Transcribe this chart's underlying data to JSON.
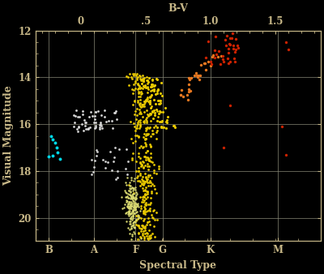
{
  "title": "B-V",
  "xlabel": "Spectral Type",
  "ylabel": "Visual Magnitude",
  "bg_color": "#000000",
  "text_color": "#c8b888",
  "grid_color": "#888877",
  "figsize": [
    4.0,
    3.38
  ],
  "dpi": 100,
  "xlim": [
    -0.35,
    1.85
  ],
  "ylim": [
    21.0,
    12.0
  ],
  "bv_ticks": [
    0.0,
    0.5,
    1.0,
    1.5
  ],
  "bv_tick_labels": [
    "0",
    ".5",
    "1.0",
    "1.5"
  ],
  "spectral_types": [
    "B",
    "A",
    "F",
    "G",
    "K",
    "M"
  ],
  "spectral_bv": [
    -0.25,
    0.1,
    0.42,
    0.63,
    1.0,
    1.52
  ],
  "ymajor_ticks": [
    12,
    14,
    16,
    18,
    20
  ],
  "rng_seed": 42,
  "ms_yellow_color": "#e8c800",
  "subgiant_orange_color": "#e87820",
  "red_giant_color": "#cc2200",
  "hb_white_color": "#d8d8d8",
  "rr_cyan_color": "#00d8e8",
  "field_white_color": "#d0d0d0",
  "faint_yellow_color": "#d8d870"
}
